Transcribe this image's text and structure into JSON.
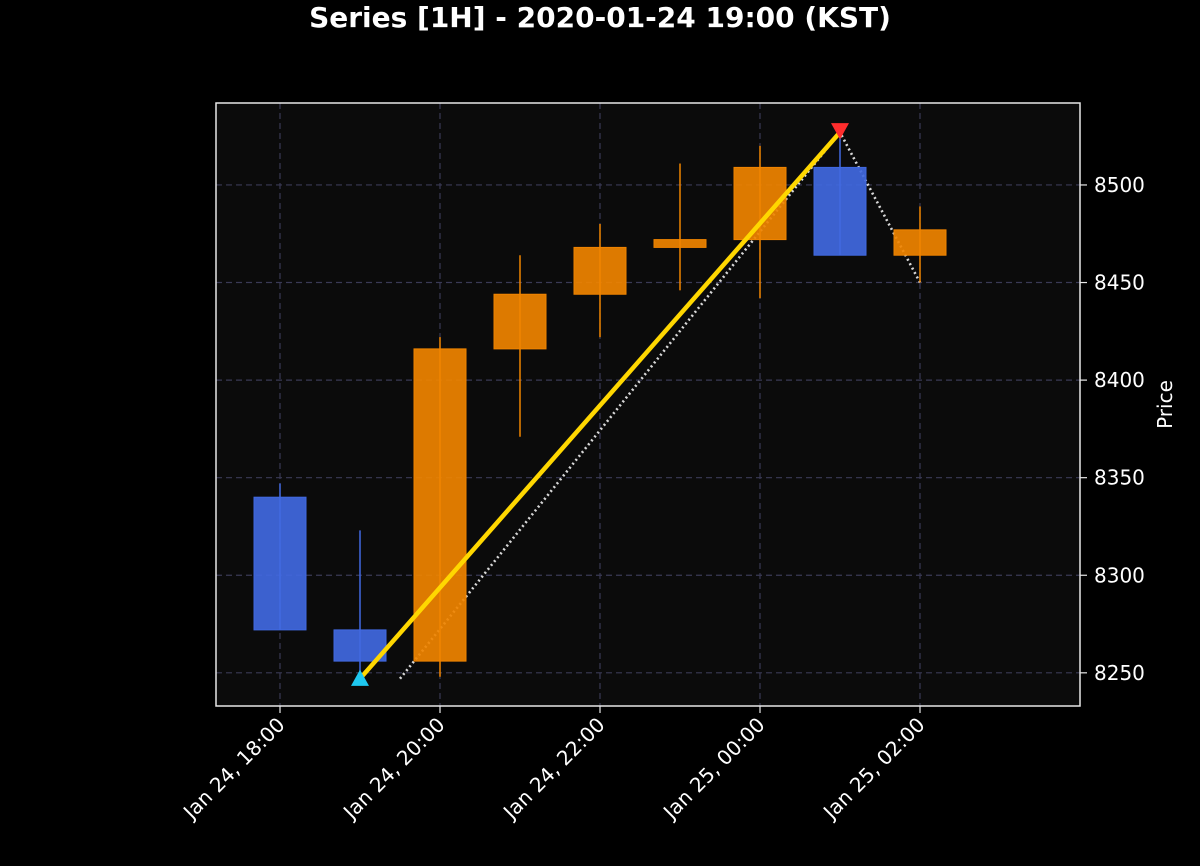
{
  "chart_data": {
    "type": "candlestick",
    "title": "Series [1H] - 2020-01-24 19:00 (KST)",
    "ylabel": "Price",
    "xlabel": "",
    "ylim": [
      8233,
      8542
    ],
    "xlim_hours": [
      -1.4,
      4.0
    ],
    "grid": true,
    "y_axis_position": "right",
    "y_ticks": [
      8250,
      8300,
      8350,
      8400,
      8450,
      8500
    ],
    "x_ticks": [
      {
        "label": "Jan 24, 18:00",
        "hour": -1
      },
      {
        "label": "Jan 24, 20:00",
        "hour": 0
      },
      {
        "label": "Jan 24, 22:00",
        "hour": 1
      },
      {
        "label": "Jan 25, 00:00",
        "hour": 2
      },
      {
        "label": "Jan 25, 02:00",
        "hour": 3
      }
    ],
    "candles": [
      {
        "time": "2020-01-24 18:00",
        "open": 8340,
        "high": 8347,
        "low": 8272,
        "close": 8272
      },
      {
        "time": "2020-01-24 19:00",
        "open": 8272,
        "high": 8323,
        "low": 8245,
        "close": 8256
      },
      {
        "time": "2020-01-24 20:00",
        "open": 8256,
        "high": 8422,
        "low": 8248,
        "close": 8416
      },
      {
        "time": "2020-01-24 21:00",
        "open": 8416,
        "high": 8464,
        "low": 8371,
        "close": 8444
      },
      {
        "time": "2020-01-24 22:00",
        "open": 8444,
        "high": 8480,
        "low": 8422,
        "close": 8468
      },
      {
        "time": "2020-01-24 23:00",
        "open": 8468,
        "high": 8511,
        "low": 8446,
        "close": 8472
      },
      {
        "time": "2020-01-25 00:00",
        "open": 8472,
        "high": 8520,
        "low": 8442,
        "close": 8509
      },
      {
        "time": "2020-01-25 01:00",
        "open": 8509,
        "high": 8527,
        "low": 8464,
        "close": 8464
      },
      {
        "time": "2020-01-25 02:00",
        "open": 8464,
        "high": 8489,
        "low": 8450,
        "close": 8477
      }
    ],
    "trend_line": {
      "from": {
        "time": "2020-01-24 19:00",
        "price": 8247
      },
      "to": {
        "time": "2020-01-25 01:00",
        "price": 8527
      }
    },
    "dotted_path": [
      {
        "time": "2020-01-24 19:30",
        "price": 8247
      },
      {
        "time": "2020-01-25 01:00",
        "price": 8527
      },
      {
        "time": "2020-01-25 02:00",
        "price": 8450
      }
    ],
    "markers": [
      {
        "type": "triangle-up",
        "time": "2020-01-24 19:00",
        "price": 8247
      },
      {
        "type": "triangle-down",
        "time": "2020-01-25 01:00",
        "price": 8528
      }
    ],
    "colors": {
      "background": "#000000",
      "plot_background": "#0b0b0b",
      "up": "#f08400",
      "down": "#4169e1",
      "trend_line": "#ffd700",
      "dotted_path": "#d8d8d8",
      "marker_up": "#1ec8f0",
      "marker_down": "#ff2d2d",
      "grid": "#3a3a55"
    }
  }
}
